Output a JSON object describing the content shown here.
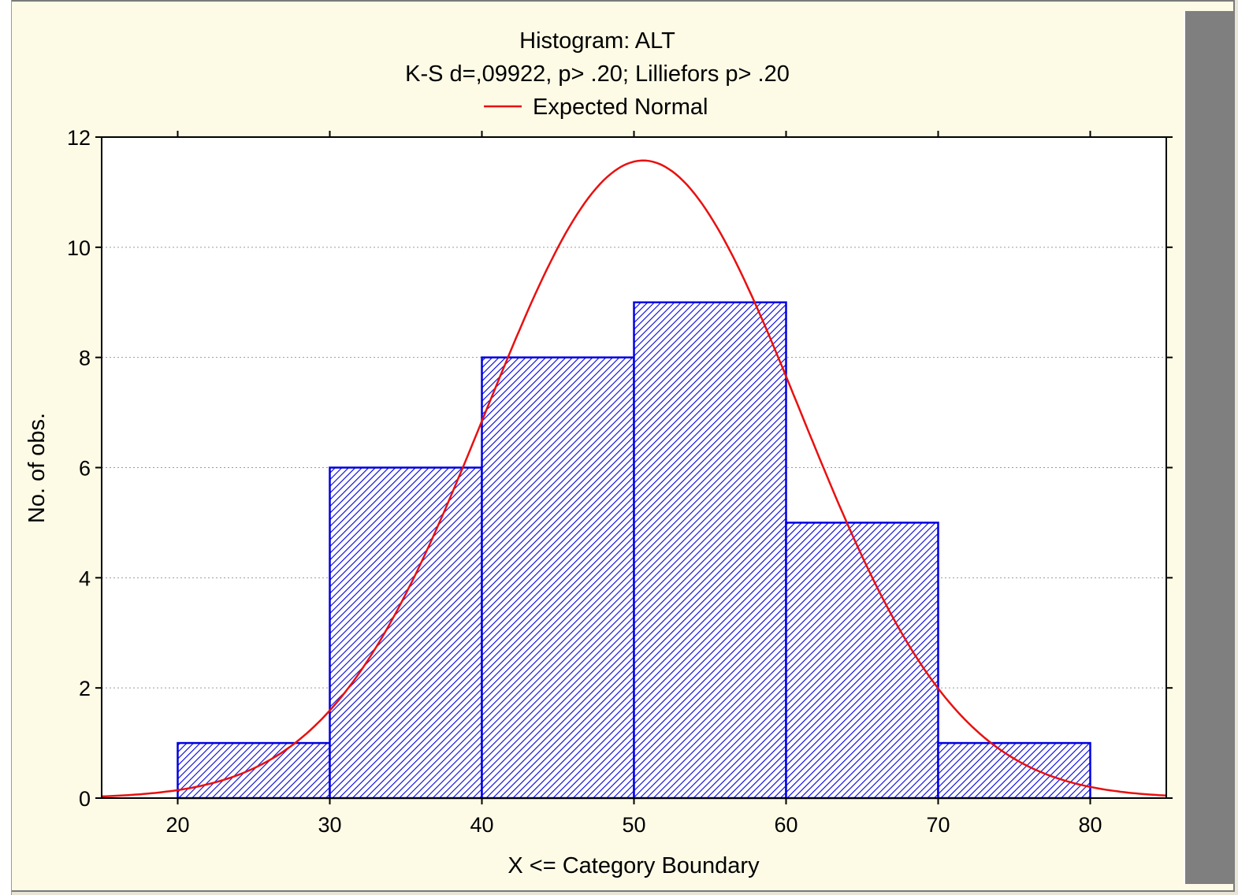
{
  "chart_data": {
    "type": "bar",
    "title": "Histogram: ALT",
    "subtitle": "K-S d=,09922, p> .20; Lilliefors p> .20",
    "legend": [
      {
        "name": "Expected Normal",
        "color": "#e81010"
      }
    ],
    "xlabel": "X <= Category Boundary",
    "ylabel": "No. of obs.",
    "xlim": [
      15,
      85
    ],
    "ylim": [
      0,
      12
    ],
    "x_ticks": [
      20,
      30,
      40,
      50,
      60,
      70,
      80
    ],
    "y_ticks": [
      0,
      2,
      4,
      6,
      8,
      10,
      12
    ],
    "bins": [
      {
        "from": 20,
        "to": 30,
        "count": 1
      },
      {
        "from": 30,
        "to": 40,
        "count": 6
      },
      {
        "from": 40,
        "to": 50,
        "count": 8
      },
      {
        "from": 50,
        "to": 60,
        "count": 9
      },
      {
        "from": 60,
        "to": 70,
        "count": 5
      },
      {
        "from": 70,
        "to": 80,
        "count": 1
      }
    ],
    "expected_normal": {
      "mean": 50.6,
      "sd": 10.34,
      "n": 30,
      "bin_width": 10
    },
    "grid": "horizontal dotted",
    "legend_position": "top-center",
    "colors": {
      "bar_stroke": "#0000e0",
      "bar_hatch": "#0000e0",
      "curve": "#e81010"
    }
  }
}
